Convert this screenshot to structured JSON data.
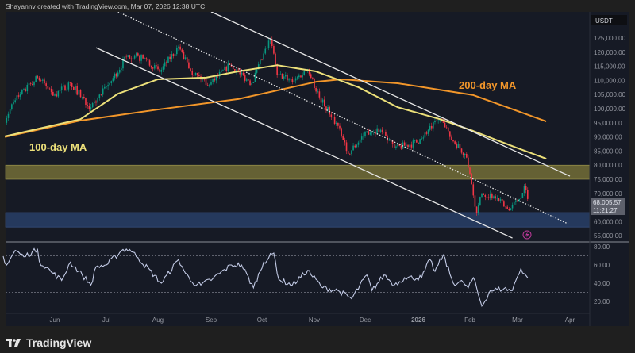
{
  "header": {
    "credit": "Shayannv created with TradingView.com, Mar 07, 2026 12:38 UTC"
  },
  "footer": {
    "logo_text": "TradingView"
  },
  "colors": {
    "up": "#089981",
    "down": "#f23645",
    "ma200": "#f2962a",
    "ma100": "#ece07a",
    "resistance_zone": "#807a3a",
    "support_zone": "#2b4470",
    "rsi": "#c3cbe6",
    "price_tag": "#5d606b"
  },
  "chart_data": {
    "type": "candlestick",
    "currency": "USDT",
    "last_price": "68,005.57",
    "countdown": "11:21:27",
    "price_ticks": [
      "125,000.00",
      "120,000.00",
      "115,000.00",
      "110,000.00",
      "105,000.00",
      "100,000.00",
      "95,000.00",
      "90,000.00",
      "85,000.00",
      "80,000.00",
      "75,000.00",
      "70,000.00",
      "60,000.00",
      "55,000.00"
    ],
    "price_tick_values": [
      125000,
      120000,
      115000,
      110000,
      105000,
      100000,
      95000,
      90000,
      85000,
      80000,
      75000,
      70000,
      60000,
      55000
    ],
    "time_ticks": [
      "Jun",
      "Jul",
      "Aug",
      "Sep",
      "Oct",
      "Nov",
      "Dec",
      "2026",
      "Feb",
      "Mar",
      "Apr"
    ],
    "price_path": [
      [
        "2025-05-03",
        96300
      ],
      [
        "2025-05-09",
        103000
      ],
      [
        "2025-05-22",
        111000
      ],
      [
        "2025-06-01",
        105000
      ],
      [
        "2025-06-10",
        109000
      ],
      [
        "2025-06-22",
        100500
      ],
      [
        "2025-07-03",
        109000
      ],
      [
        "2025-07-14",
        119000
      ],
      [
        "2025-07-25",
        117500
      ],
      [
        "2025-08-02",
        113000
      ],
      [
        "2025-08-13",
        122000
      ],
      [
        "2025-08-20",
        113500
      ],
      [
        "2025-08-31",
        108500
      ],
      [
        "2025-09-12",
        115500
      ],
      [
        "2025-09-25",
        109000
      ],
      [
        "2025-10-06",
        124500
      ],
      [
        "2025-10-10",
        112000
      ],
      [
        "2025-10-20",
        110000
      ],
      [
        "2025-10-28",
        114000
      ],
      [
        "2025-11-04",
        104000
      ],
      [
        "2025-11-14",
        95000
      ],
      [
        "2025-11-21",
        84000
      ],
      [
        "2025-12-02",
        92000
      ],
      [
        "2025-12-10",
        92500
      ],
      [
        "2025-12-18",
        86000
      ],
      [
        "2025-12-31",
        88000
      ],
      [
        "2026-01-14",
        96500
      ],
      [
        "2026-01-20",
        90000
      ],
      [
        "2026-01-29",
        84000
      ],
      [
        "2026-02-01",
        77000
      ],
      [
        "2026-02-05",
        63000
      ],
      [
        "2026-02-08",
        70000
      ],
      [
        "2026-02-15",
        69000
      ],
      [
        "2026-02-24",
        64000
      ],
      [
        "2026-03-02",
        68000
      ],
      [
        "2026-03-05",
        72500
      ],
      [
        "2026-03-07",
        68005.57
      ]
    ],
    "ma200": {
      "label": "200-day MA",
      "points": [
        [
          "2025-05-03",
          90000
        ],
        [
          "2025-06-16",
          95800
        ],
        [
          "2025-08-01",
          99700
        ],
        [
          "2025-09-17",
          103400
        ],
        [
          "2025-11-02",
          109500
        ],
        [
          "2025-11-17",
          110400
        ],
        [
          "2025-12-20",
          109000
        ],
        [
          "2026-02-03",
          104800
        ],
        [
          "2026-03-18",
          95500
        ]
      ]
    },
    "ma100": {
      "label": "100-day MA",
      "points": [
        [
          "2025-05-03",
          90200
        ],
        [
          "2025-06-16",
          96300
        ],
        [
          "2025-07-08",
          105300
        ],
        [
          "2025-08-01",
          110400
        ],
        [
          "2025-08-29",
          111000
        ],
        [
          "2025-09-17",
          113200
        ],
        [
          "2025-10-10",
          115400
        ],
        [
          "2025-11-02",
          113200
        ],
        [
          "2025-11-27",
          107600
        ],
        [
          "2025-12-20",
          100500
        ],
        [
          "2026-01-14",
          96300
        ],
        [
          "2026-02-03",
          92100
        ],
        [
          "2026-02-27",
          86500
        ],
        [
          "2026-03-18",
          82300
        ]
      ]
    },
    "trendlines": [
      {
        "style": "solid",
        "from": [
          "2025-09-01",
          134300
        ],
        "to": [
          "2026-04-01",
          76100
        ]
      },
      {
        "style": "solid",
        "from": [
          "2025-06-25",
          121600
        ],
        "to": [
          "2026-02-26",
          54200
        ]
      },
      {
        "style": "dotted",
        "from": [
          "2025-07-08",
          134300
        ],
        "to": [
          "2026-03-31",
          59200
        ]
      }
    ],
    "zones": [
      {
        "kind": "resistance",
        "low": 75000,
        "high": 80000
      },
      {
        "kind": "support",
        "low": 58100,
        "high": 63200
      }
    ],
    "rsi": {
      "ticks": [
        "80.00",
        "60.00",
        "40.00",
        "20.00"
      ],
      "tick_values": [
        80,
        60,
        40,
        20
      ],
      "bands": [
        70,
        50,
        30
      ],
      "points": [
        [
          "2025-05-02",
          69
        ],
        [
          "2025-05-04",
          60
        ],
        [
          "2025-05-09",
          76
        ],
        [
          "2025-05-14",
          69
        ],
        [
          "2025-05-22",
          77
        ],
        [
          "2025-05-23",
          64
        ],
        [
          "2025-05-31",
          51
        ],
        [
          "2025-06-05",
          43
        ],
        [
          "2025-06-10",
          63
        ],
        [
          "2025-06-17",
          49
        ],
        [
          "2025-06-22",
          38
        ],
        [
          "2025-06-25",
          58
        ],
        [
          "2025-07-01",
          60
        ],
        [
          "2025-07-11",
          77
        ],
        [
          "2025-07-15",
          77
        ],
        [
          "2025-07-20",
          68
        ],
        [
          "2025-08-03",
          40
        ],
        [
          "2025-08-13",
          66
        ],
        [
          "2025-08-17",
          51
        ],
        [
          "2025-08-21",
          41
        ],
        [
          "2025-08-26",
          38
        ],
        [
          "2025-09-02",
          45
        ],
        [
          "2025-09-13",
          60
        ],
        [
          "2025-09-19",
          60
        ],
        [
          "2025-09-26",
          35
        ],
        [
          "2025-10-02",
          63
        ],
        [
          "2025-10-08",
          73
        ],
        [
          "2025-10-11",
          44
        ],
        [
          "2025-10-19",
          38
        ],
        [
          "2025-10-28",
          54
        ],
        [
          "2025-11-06",
          35
        ],
        [
          "2025-11-15",
          32
        ],
        [
          "2025-11-23",
          23
        ],
        [
          "2025-12-02",
          49
        ],
        [
          "2025-12-05",
          32
        ],
        [
          "2025-12-12",
          49
        ],
        [
          "2025-12-18",
          38
        ],
        [
          "2025-12-24",
          46
        ],
        [
          "2026-01-03",
          46
        ],
        [
          "2026-01-08",
          66
        ],
        [
          "2026-01-11",
          53
        ],
        [
          "2026-01-16",
          71
        ],
        [
          "2026-01-22",
          40
        ],
        [
          "2026-01-28",
          41
        ],
        [
          "2026-01-31",
          35
        ],
        [
          "2026-02-03",
          46
        ],
        [
          "2026-02-08",
          15
        ],
        [
          "2026-02-13",
          32
        ],
        [
          "2026-02-21",
          34
        ],
        [
          "2026-02-26",
          32
        ],
        [
          "2026-02-28",
          43
        ],
        [
          "2026-03-03",
          56
        ],
        [
          "2026-03-07",
          46
        ]
      ]
    }
  }
}
